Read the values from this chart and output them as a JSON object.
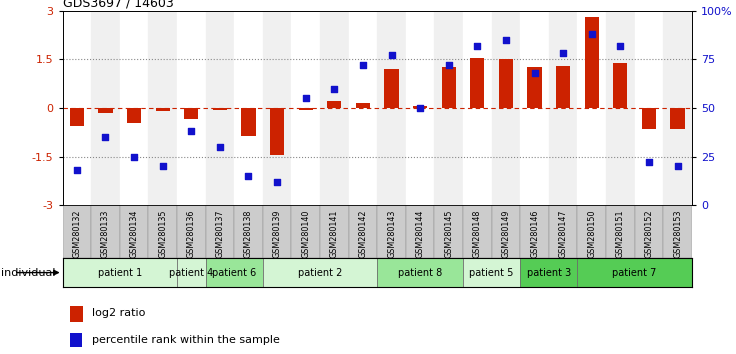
{
  "title": "GDS3697 / 14603",
  "samples": [
    "GSM280132",
    "GSM280133",
    "GSM280134",
    "GSM280135",
    "GSM280136",
    "GSM280137",
    "GSM280138",
    "GSM280139",
    "GSM280140",
    "GSM280141",
    "GSM280142",
    "GSM280143",
    "GSM280144",
    "GSM280145",
    "GSM280148",
    "GSM280149",
    "GSM280146",
    "GSM280147",
    "GSM280150",
    "GSM280151",
    "GSM280152",
    "GSM280153"
  ],
  "log2_ratio": [
    -0.55,
    -0.15,
    -0.45,
    -0.1,
    -0.35,
    -0.05,
    -0.85,
    -1.45,
    -0.05,
    0.2,
    0.15,
    1.2,
    0.05,
    1.25,
    1.55,
    1.5,
    1.25,
    1.3,
    2.8,
    1.4,
    -0.65,
    -0.65
  ],
  "percentile": [
    18,
    35,
    25,
    20,
    38,
    30,
    15,
    12,
    55,
    60,
    72,
    77,
    50,
    72,
    82,
    85,
    68,
    78,
    88,
    82,
    22,
    20
  ],
  "patients": [
    {
      "label": "patient 1",
      "start": 0,
      "end": 4,
      "color": "#d4f5d4"
    },
    {
      "label": "patient 4",
      "start": 4,
      "end": 5,
      "color": "#d4f5d4"
    },
    {
      "label": "patient 6",
      "start": 5,
      "end": 7,
      "color": "#99e699"
    },
    {
      "label": "patient 2",
      "start": 7,
      "end": 11,
      "color": "#d4f5d4"
    },
    {
      "label": "patient 8",
      "start": 11,
      "end": 14,
      "color": "#99e699"
    },
    {
      "label": "patient 5",
      "start": 14,
      "end": 16,
      "color": "#d4f5d4"
    },
    {
      "label": "patient 3",
      "start": 16,
      "end": 18,
      "color": "#55cc55"
    },
    {
      "label": "patient 7",
      "start": 18,
      "end": 22,
      "color": "#55cc55"
    }
  ],
  "bar_color": "#cc2200",
  "dot_color": "#1111cc",
  "ylim": [
    -3,
    3
  ],
  "yticks": [
    -3,
    -1.5,
    0,
    1.5,
    3
  ],
  "y2ticks": [
    0,
    25,
    50,
    75,
    100
  ],
  "hlines_dotted": [
    -1.5,
    1.5
  ],
  "hline_zero": 0,
  "legend_bar": "log2 ratio",
  "legend_dot": "percentile rank within the sample"
}
